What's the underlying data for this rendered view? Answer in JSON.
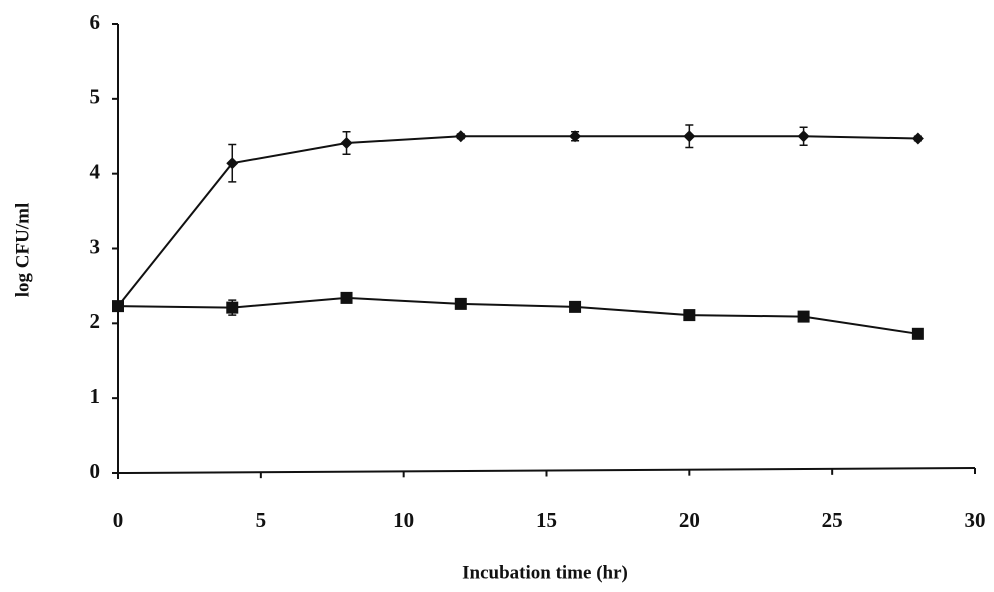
{
  "chart_data": {
    "type": "line",
    "x_label": "Incubation time (hr)",
    "y_label": "log CFU/ml",
    "x": [
      0,
      4,
      8,
      12,
      16,
      20,
      24,
      28
    ],
    "series": [
      {
        "marker": "diamond",
        "color": "#111111",
        "values": [
          2.23,
          4.14,
          4.41,
          4.5,
          4.5,
          4.5,
          4.5,
          4.47
        ],
        "errors": [
          0.04,
          0.25,
          0.15,
          0.03,
          0.06,
          0.15,
          0.12,
          0.03
        ]
      },
      {
        "marker": "square",
        "color": "#111111",
        "values": [
          2.23,
          2.21,
          2.34,
          2.26,
          2.22,
          2.11,
          2.09,
          1.86
        ],
        "errors": [
          0.04,
          0.1,
          0.04,
          0.03,
          0.03,
          0.04,
          0.04,
          0.03
        ]
      }
    ],
    "xlim": [
      0,
      30
    ],
    "xticks": [
      0,
      5,
      10,
      15,
      20,
      25,
      30
    ],
    "ylim": [
      0,
      6
    ],
    "yticks": [
      0,
      1,
      2,
      3,
      4,
      5,
      6
    ]
  }
}
